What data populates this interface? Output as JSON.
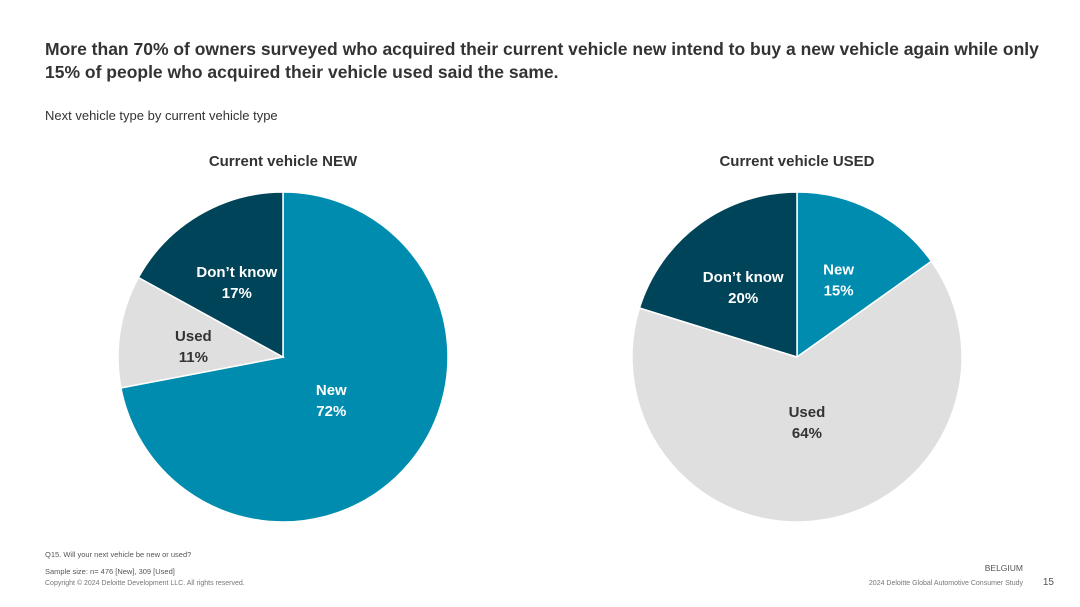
{
  "headline": "More than 70% of owners surveyed who acquired their current vehicle new intend to buy a new vehicle again while only 15% of people who acquired their vehicle used said the same.",
  "subtitle": "Next vehicle type by current vehicle type",
  "colors": {
    "new": "#008CAE",
    "used": "#DFDFDF",
    "dont_know": "#00445A"
  },
  "chart_data": [
    {
      "type": "pie",
      "title": "Current vehicle NEW",
      "slices": [
        {
          "label": "New",
          "value": 72,
          "value_label": "72%",
          "color": "#008CAE",
          "text_color": "#FFFFFF"
        },
        {
          "label": "Used",
          "value": 11,
          "value_label": "11%",
          "color": "#DFDFDF",
          "text_color": "#333333"
        },
        {
          "label": "Don’t know",
          "value": 17,
          "value_label": "17%",
          "color": "#00445A",
          "text_color": "#FFFFFF"
        }
      ],
      "start_angle_deg": 0,
      "direction": "clockwise"
    },
    {
      "type": "pie",
      "title": "Current vehicle USED",
      "slices": [
        {
          "label": "New",
          "value": 15,
          "value_label": "15%",
          "color": "#008CAE",
          "text_color": "#FFFFFF"
        },
        {
          "label": "Used",
          "value": 64,
          "value_label": "64%",
          "color": "#DFDFDF",
          "text_color": "#333333"
        },
        {
          "label": "Don’t know",
          "value": 20,
          "value_label": "20%",
          "color": "#00445A",
          "text_color": "#FFFFFF"
        }
      ],
      "start_angle_deg": 0,
      "direction": "clockwise"
    }
  ],
  "footer": {
    "question": "Q15. Will your next vehicle be new or used?",
    "sample": "Sample size: n= 476 [New], 309 [Used]",
    "copyright": "Copyright © 2024 Deloitte Development LLC. All rights reserved.",
    "country": "BELGIUM",
    "study": "2024 Deloitte Global Automotive Consumer Study",
    "page": "15"
  }
}
